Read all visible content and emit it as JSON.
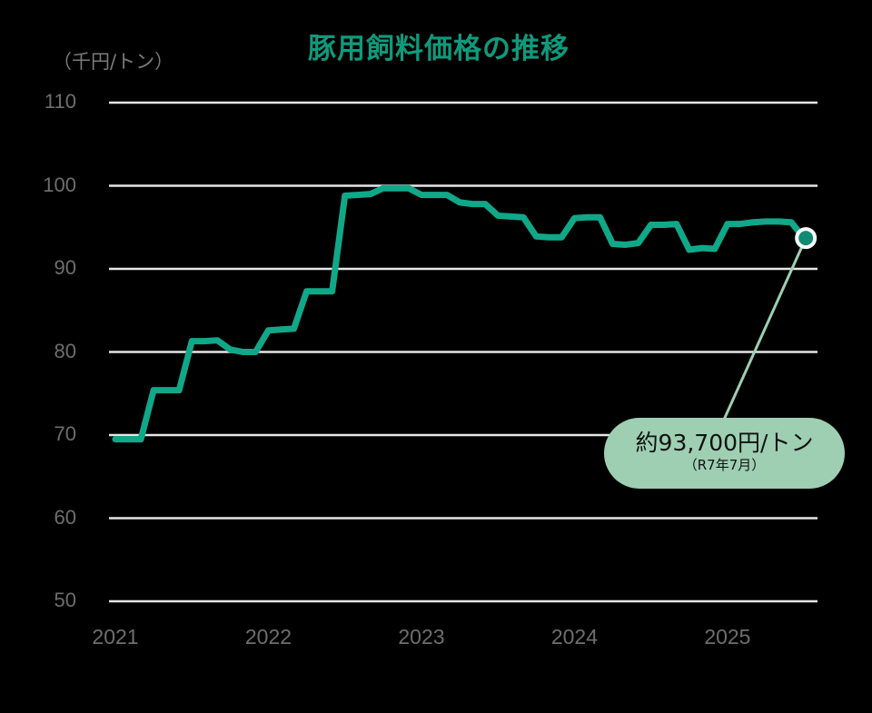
{
  "title": "豚用飼料価格の推移",
  "unit_label": "（千円/トン）",
  "y_ticks": [
    "110",
    "100",
    "90",
    "80",
    "70",
    "60",
    "50"
  ],
  "x_ticks": [
    "2021",
    "2022",
    "2023",
    "2024",
    "2025"
  ],
  "colors": {
    "line": "#10a888",
    "title": "#0e9a7c",
    "grid": "#e6e6e6",
    "callout_bg": "#9ecfb2",
    "leader": "#9ecfb2",
    "marker": "#0e8c72"
  },
  "callout": {
    "value_text": "約93,700円/トン",
    "date_text": "（R7年7月）"
  },
  "chart_data": {
    "type": "line",
    "title": "豚用飼料価格の推移",
    "xlabel": "",
    "ylabel": "（千円/トン）",
    "ylim": [
      50,
      110
    ],
    "yticks": [
      50,
      60,
      70,
      80,
      90,
      100,
      110
    ],
    "xticks": [
      "2021",
      "2022",
      "2023",
      "2024",
      "2025"
    ],
    "grid": true,
    "legend": "none",
    "x": [
      "2021-01",
      "2021-02",
      "2021-03",
      "2021-04",
      "2021-05",
      "2021-06",
      "2021-07",
      "2021-08",
      "2021-09",
      "2021-10",
      "2021-11",
      "2021-12",
      "2022-01",
      "2022-02",
      "2022-03",
      "2022-04",
      "2022-05",
      "2022-06",
      "2022-07",
      "2022-08",
      "2022-09",
      "2022-10",
      "2022-11",
      "2022-12",
      "2023-01",
      "2023-02",
      "2023-03",
      "2023-04",
      "2023-05",
      "2023-06",
      "2023-07",
      "2023-08",
      "2023-09",
      "2023-10",
      "2023-11",
      "2023-12",
      "2024-01",
      "2024-02",
      "2024-03",
      "2024-04",
      "2024-05",
      "2024-06",
      "2024-07",
      "2024-08",
      "2024-09",
      "2024-10",
      "2024-11",
      "2024-12",
      "2025-01",
      "2025-02",
      "2025-03",
      "2025-04",
      "2025-05",
      "2025-06",
      "2025-07"
    ],
    "series": [
      {
        "name": "豚用飼料価格",
        "values": [
          69.5,
          69.5,
          69.5,
          75.4,
          75.4,
          75.4,
          81.3,
          81.3,
          81.4,
          80.3,
          80.0,
          80.0,
          82.6,
          82.7,
          82.8,
          87.3,
          87.3,
          87.3,
          98.8,
          98.9,
          99.0,
          99.7,
          99.7,
          99.7,
          98.9,
          98.9,
          98.9,
          98.0,
          97.8,
          97.8,
          96.4,
          96.3,
          96.2,
          93.9,
          93.8,
          93.8,
          96.1,
          96.2,
          96.2,
          93.0,
          92.9,
          93.1,
          95.3,
          95.3,
          95.4,
          92.3,
          92.5,
          92.4,
          95.4,
          95.4,
          95.6,
          95.7,
          95.7,
          95.6,
          93.7
        ]
      }
    ],
    "annotations": [
      {
        "x": "2025-07",
        "y": 93.7,
        "text": "約93,700円/トン（R7年7月）"
      }
    ]
  }
}
